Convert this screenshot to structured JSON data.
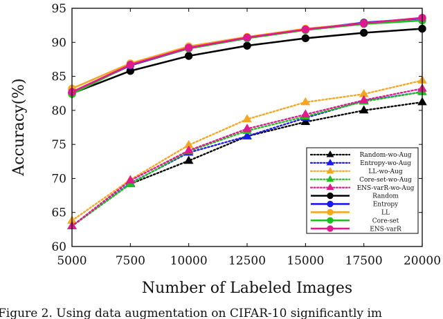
{
  "chart_data": {
    "type": "line",
    "xlabel": "Number of Labeled Images",
    "ylabel": "Accuracy(%)",
    "xlim": [
      5000,
      20000
    ],
    "ylim": [
      60,
      95
    ],
    "x": [
      5000,
      7500,
      10000,
      12500,
      15000,
      17500,
      20000
    ],
    "xticks": [
      "5000",
      "7500",
      "10000",
      "12500",
      "15000",
      "17500",
      "20000"
    ],
    "yticks": [
      "60",
      "65",
      "70",
      "75",
      "80",
      "85",
      "90",
      "95"
    ],
    "legend_position": "bottom-right",
    "grid": false,
    "series": [
      {
        "name": "Random-wo-Aug",
        "color": "#000000",
        "style": "dotted",
        "marker": "triangle",
        "values": [
          63.0,
          69.2,
          72.6,
          76.2,
          78.3,
          80.0,
          81.2
        ]
      },
      {
        "name": "Entropy-wo-Aug",
        "color": "#1a1aee",
        "style": "dotted",
        "marker": "triangle",
        "values": [
          63.0,
          69.3,
          73.8,
          76.2,
          78.9,
          81.4,
          82.7
        ]
      },
      {
        "name": "LL-wo-Aug",
        "color": "#f5a623",
        "style": "dotted",
        "marker": "triangle",
        "values": [
          63.8,
          69.8,
          74.9,
          78.7,
          81.2,
          82.4,
          84.4
        ]
      },
      {
        "name": "Core-set-wo-Aug",
        "color": "#1fbf1f",
        "style": "dotted",
        "marker": "triangle",
        "values": [
          63.0,
          69.2,
          74.0,
          77.0,
          79.1,
          81.3,
          82.7
        ]
      },
      {
        "name": "ENS-varR-wo-Aug",
        "color": "#e0198f",
        "style": "dotted",
        "marker": "triangle",
        "values": [
          63.0,
          69.7,
          74.1,
          77.3,
          79.4,
          81.5,
          83.2
        ]
      },
      {
        "name": "Random",
        "color": "#000000",
        "style": "solid",
        "marker": "circle",
        "values": [
          82.5,
          85.8,
          88.0,
          89.5,
          90.6,
          91.4,
          92.0
        ]
      },
      {
        "name": "Entropy",
        "color": "#1a1aee",
        "style": "solid",
        "marker": "circle",
        "values": [
          82.6,
          86.6,
          89.1,
          90.6,
          91.9,
          92.9,
          93.5
        ]
      },
      {
        "name": "LL",
        "color": "#f5a623",
        "style": "solid",
        "marker": "circle",
        "values": [
          83.2,
          86.9,
          89.4,
          90.8,
          92.0,
          92.8,
          93.6
        ]
      },
      {
        "name": "Core-set",
        "color": "#1fbf1f",
        "style": "solid",
        "marker": "circle",
        "values": [
          82.4,
          86.7,
          89.1,
          90.6,
          91.8,
          92.7,
          93.2
        ]
      },
      {
        "name": "ENS-varR",
        "color": "#e0198f",
        "style": "solid",
        "marker": "circle",
        "values": [
          82.7,
          86.7,
          89.2,
          90.7,
          91.9,
          92.8,
          93.6
        ]
      }
    ]
  },
  "caption": "Figure 2. Using data augmentation on CIFAR-10 significantly im"
}
